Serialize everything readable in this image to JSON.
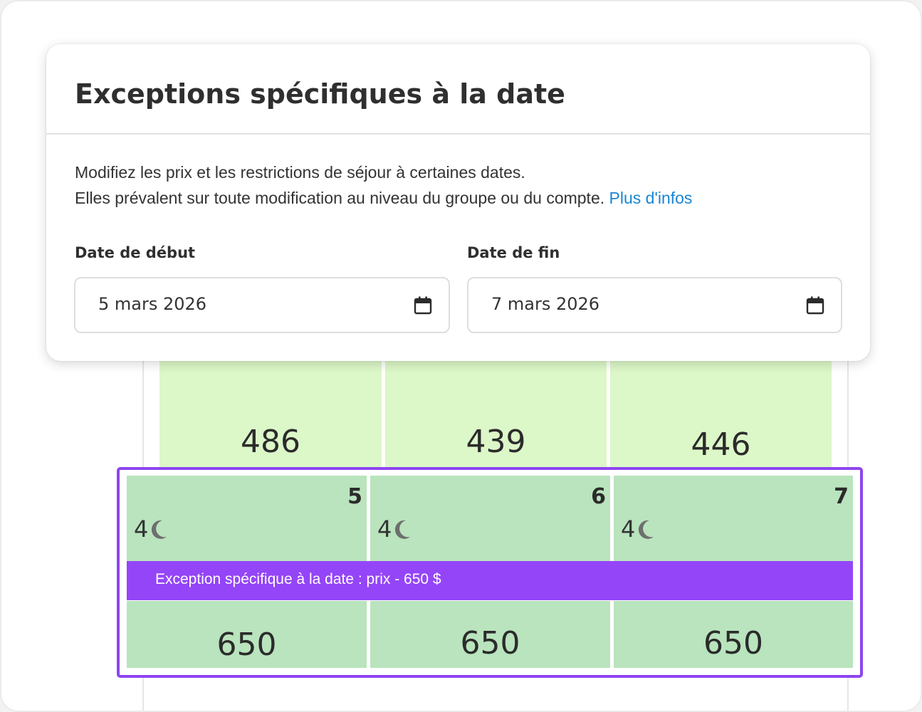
{
  "modal": {
    "title": "Exceptions spécifiques à la date",
    "description_line1": "Modifiez les prix et les restrictions de séjour à certaines dates.",
    "description_line2": "Elles prévalent sur toute modification au niveau du groupe ou du compte.",
    "more_info_link": "Plus d'infos",
    "start_date": {
      "label": "Date de début",
      "value": "5 mars 2026",
      "icon": "calendar-icon"
    },
    "end_date": {
      "label": "Date de fin",
      "value": "7 mars 2026",
      "icon": "calendar-icon"
    }
  },
  "previous_row": {
    "prices": [
      "486",
      "439",
      "446"
    ]
  },
  "exception_row": {
    "days": [
      {
        "day": "5",
        "nights": "4",
        "price": "650"
      },
      {
        "day": "6",
        "nights": "4",
        "price": "650"
      },
      {
        "day": "7",
        "nights": "4",
        "price": "650"
      }
    ],
    "banner": "Exception spécifique à la date : prix - 650 $",
    "night_icon": "moon-icon"
  },
  "colors": {
    "accent_purple": "#9445f8",
    "link_blue": "#1a86d0",
    "cell_light_green": "#dcf7c8",
    "cell_green": "#b9e4bd"
  }
}
